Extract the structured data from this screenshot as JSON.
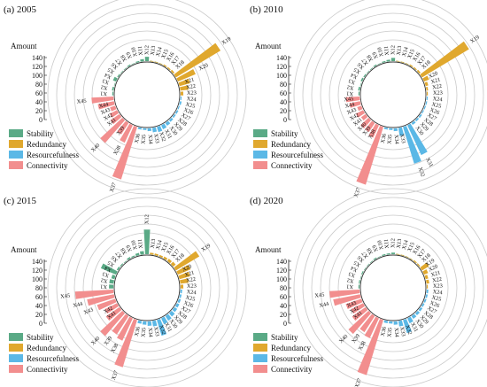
{
  "legend": {
    "title": "Amount",
    "ticks": [
      140,
      120,
      100,
      80,
      60,
      40,
      20,
      0
    ],
    "items": [
      {
        "name": "Stability",
        "color": "#5aaa86"
      },
      {
        "name": "Redundancy",
        "color": "#e0a82e"
      },
      {
        "name": "Resourcefulness",
        "color": "#5bb8e6"
      },
      {
        "name": "Connectivity",
        "color": "#f28e8e"
      }
    ]
  },
  "chart_data": [
    {
      "type": "bar",
      "subtype": "radial",
      "title": "(a) 2005",
      "ylim": [
        0,
        140
      ],
      "categories": [
        "X1",
        "X2",
        "X3",
        "X4",
        "X5",
        "X6",
        "X7",
        "X8",
        "X9",
        "X10",
        "X11",
        "X12",
        "X13",
        "X14",
        "X15",
        "X16",
        "X17",
        "X18",
        "X19",
        "X20",
        "X21",
        "X22",
        "X23",
        "X24",
        "X25",
        "X26",
        "X27",
        "X28",
        "X29",
        "X30",
        "X31",
        "X32",
        "X33",
        "X34",
        "X35",
        "X36",
        "X37",
        "X38",
        "X39",
        "X40",
        "X41",
        "X42",
        "X43",
        "X44",
        "X45"
      ],
      "series": [
        {
          "name": "Stability",
          "values": [
            2,
            3,
            1,
            6,
            2,
            1,
            1,
            2,
            1,
            2,
            4,
            8,
            1,
            1,
            1,
            1,
            1,
            1,
            0,
            0,
            0,
            0,
            0,
            0,
            0,
            0,
            0,
            0,
            0,
            0,
            0,
            0,
            0,
            0,
            0,
            0,
            0,
            0,
            0,
            0,
            0,
            0,
            0,
            0,
            0
          ]
        },
        {
          "name": "Redundancy",
          "values": [
            0,
            0,
            0,
            0,
            0,
            0,
            0,
            0,
            0,
            0,
            0,
            0,
            1,
            1,
            1,
            2,
            2,
            3,
            95,
            35,
            20,
            15,
            5,
            0,
            0,
            0,
            0,
            0,
            0,
            0,
            0,
            0,
            0,
            0,
            0,
            0,
            0,
            0,
            0,
            0,
            0,
            0,
            0,
            0,
            0
          ]
        },
        {
          "name": "Resourcefulness",
          "values": [
            0,
            0,
            0,
            0,
            0,
            0,
            0,
            0,
            0,
            0,
            0,
            0,
            0,
            0,
            0,
            0,
            0,
            0,
            0,
            0,
            0,
            0,
            0,
            2,
            3,
            2,
            3,
            3,
            4,
            6,
            8,
            10,
            8,
            5,
            3,
            3,
            0,
            0,
            0,
            0,
            0,
            0,
            0,
            0,
            0
          ]
        },
        {
          "name": "Connectivity",
          "values": [
            0,
            0,
            0,
            0,
            0,
            0,
            0,
            0,
            0,
            0,
            0,
            0,
            0,
            0,
            0,
            0,
            0,
            0,
            0,
            0,
            0,
            0,
            0,
            0,
            0,
            0,
            0,
            0,
            0,
            0,
            0,
            0,
            0,
            0,
            0,
            0,
            100,
            35,
            25,
            55,
            20,
            15,
            10,
            30,
            40
          ]
        }
      ],
      "labels_shown": [
        "X1",
        "X2",
        "X3",
        "X4",
        "X5",
        "X6",
        "X7",
        "X8",
        "X9",
        "X10",
        "X11",
        "X12",
        "X13",
        "X14",
        "X15",
        "X16",
        "X17",
        "X18",
        "X19",
        "X20",
        "X21",
        "X22",
        "X23",
        "X24",
        "X25",
        "X26",
        "X27",
        "X28",
        "X29",
        "X30",
        "X31",
        "X32",
        "X33",
        "X34",
        "X35",
        "X36",
        "X37",
        "X38",
        "X39",
        "X40",
        "X41",
        "X42",
        "X43",
        "X44",
        "X45"
      ]
    },
    {
      "type": "bar",
      "subtype": "radial",
      "title": "(b) 2010",
      "ylim": [
        0,
        140
      ],
      "categories": [
        "X1",
        "X2",
        "X3",
        "X4",
        "X5",
        "X6",
        "X7",
        "X8",
        "X9",
        "X10",
        "X11",
        "X12",
        "X13",
        "X14",
        "X15",
        "X16",
        "X17",
        "X18",
        "X19",
        "X20",
        "X21",
        "X22",
        "X23",
        "X24",
        "X25",
        "X26",
        "X27",
        "X28",
        "X29",
        "X30",
        "X31",
        "X32",
        "X33",
        "X34",
        "X35",
        "X36",
        "X37",
        "X38",
        "X39",
        "X40",
        "X41",
        "X42",
        "X43",
        "X44",
        "X45"
      ],
      "series": [
        {
          "name": "Stability",
          "values": [
            2,
            3,
            1,
            3,
            2,
            1,
            1,
            2,
            1,
            2,
            3,
            6,
            1,
            1,
            1,
            1,
            1,
            1,
            0,
            0,
            0,
            0,
            0,
            0,
            0,
            0,
            0,
            0,
            0,
            0,
            0,
            0,
            0,
            0,
            0,
            0,
            0,
            0,
            0,
            0,
            0,
            0,
            0,
            0,
            0
          ]
        },
        {
          "name": "Redundancy",
          "values": [
            0,
            0,
            0,
            0,
            0,
            0,
            0,
            0,
            0,
            0,
            0,
            0,
            1,
            1,
            1,
            2,
            2,
            3,
            100,
            10,
            5,
            3,
            2,
            0,
            0,
            0,
            0,
            0,
            0,
            0,
            0,
            0,
            0,
            0,
            0,
            0,
            0,
            0,
            0,
            0,
            0,
            0,
            0,
            0,
            0
          ]
        },
        {
          "name": "Resourcefulness",
          "values": [
            0,
            0,
            0,
            0,
            0,
            0,
            0,
            0,
            0,
            0,
            0,
            0,
            0,
            0,
            0,
            0,
            0,
            0,
            0,
            0,
            0,
            0,
            0,
            2,
            2,
            2,
            2,
            3,
            3,
            4,
            60,
            70,
            15,
            5,
            3,
            3,
            0,
            0,
            0,
            0,
            0,
            0,
            0,
            0,
            0
          ]
        },
        {
          "name": "Connectivity",
          "values": [
            0,
            0,
            0,
            0,
            0,
            0,
            0,
            0,
            0,
            0,
            0,
            0,
            0,
            0,
            0,
            0,
            0,
            0,
            0,
            0,
            0,
            0,
            0,
            0,
            0,
            0,
            0,
            0,
            0,
            0,
            0,
            0,
            0,
            0,
            0,
            0,
            110,
            25,
            20,
            20,
            10,
            15,
            8,
            20,
            25
          ]
        }
      ],
      "labels_shown": [
        "X1",
        "X2",
        "X3",
        "X4",
        "X5",
        "X6",
        "X7",
        "X8",
        "X9",
        "X10",
        "X11",
        "X12",
        "X13",
        "X14",
        "X15",
        "X16",
        "X17",
        "X18",
        "X19",
        "X20",
        "X21",
        "X22",
        "X23",
        "X24",
        "X25",
        "X26",
        "X27",
        "X28",
        "X29",
        "X30",
        "X31",
        "X32",
        "X33",
        "X34",
        "X35",
        "X36",
        "X37",
        "X38",
        "X39",
        "X40",
        "X41",
        "X42",
        "X43",
        "X44",
        "X45"
      ]
    },
    {
      "type": "bar",
      "subtype": "radial",
      "title": "(c) 2015",
      "ylim": [
        0,
        140
      ],
      "categories": [
        "X1",
        "X2",
        "X3",
        "X4",
        "X5",
        "X6",
        "X7",
        "X8",
        "X9",
        "X10",
        "X11",
        "X12",
        "X13",
        "X14",
        "X15",
        "X16",
        "X17",
        "X18",
        "X19",
        "X20",
        "X21",
        "X22",
        "X23",
        "X24",
        "X25",
        "X26",
        "X27",
        "X28",
        "X29",
        "X30",
        "X31",
        "X32",
        "X33",
        "X34",
        "X35",
        "X36",
        "X37",
        "X38",
        "X39",
        "X40",
        "X41",
        "X42",
        "X43",
        "X44",
        "X45"
      ],
      "series": [
        {
          "name": "Stability",
          "values": [
            8,
            8,
            6,
            30,
            3,
            2,
            1,
            3,
            2,
            4,
            6,
            45,
            2,
            2,
            1,
            1,
            1,
            1,
            0,
            0,
            0,
            0,
            0,
            0,
            0,
            0,
            0,
            0,
            0,
            0,
            0,
            0,
            0,
            0,
            0,
            0,
            0,
            0,
            0,
            0,
            0,
            0,
            0,
            0,
            0
          ]
        },
        {
          "name": "Redundancy",
          "values": [
            0,
            0,
            0,
            0,
            0,
            0,
            0,
            0,
            0,
            0,
            0,
            0,
            3,
            3,
            3,
            4,
            5,
            6,
            50,
            25,
            20,
            15,
            5,
            0,
            0,
            0,
            0,
            0,
            0,
            0,
            0,
            0,
            0,
            0,
            0,
            0,
            0,
            0,
            0,
            0,
            0,
            0,
            0,
            0,
            0
          ]
        },
        {
          "name": "Resourcefulness",
          "values": [
            0,
            0,
            0,
            0,
            0,
            0,
            0,
            0,
            0,
            0,
            0,
            0,
            0,
            0,
            0,
            0,
            0,
            0,
            0,
            0,
            0,
            0,
            0,
            3,
            3,
            4,
            5,
            6,
            8,
            10,
            12,
            30,
            10,
            8,
            6,
            5,
            0,
            0,
            0,
            0,
            0,
            0,
            0,
            0,
            0
          ]
        },
        {
          "name": "Connectivity",
          "values": [
            0,
            0,
            0,
            0,
            0,
            0,
            0,
            0,
            0,
            0,
            0,
            0,
            0,
            0,
            0,
            0,
            0,
            0,
            0,
            0,
            0,
            0,
            0,
            0,
            0,
            0,
            0,
            0,
            0,
            0,
            0,
            0,
            0,
            0,
            0,
            0,
            90,
            45,
            40,
            55,
            30,
            25,
            35,
            50,
            70
          ]
        }
      ],
      "labels_shown": [
        "X1",
        "X2",
        "X3",
        "X4",
        "X5",
        "X6",
        "X7",
        "X8",
        "X9",
        "X10",
        "X11",
        "X12",
        "X13",
        "X14",
        "X15",
        "X16",
        "X17",
        "X18",
        "X19",
        "X20",
        "X21",
        "X22",
        "X23",
        "X24",
        "X25",
        "X26",
        "X27",
        "X28",
        "X29",
        "X30",
        "X31",
        "X32",
        "X33",
        "X34",
        "X35",
        "X36",
        "X37",
        "X38",
        "X39",
        "X40",
        "X41",
        "X42",
        "X43",
        "X44",
        "X45"
      ]
    },
    {
      "type": "bar",
      "subtype": "radial",
      "title": "(d) 2020",
      "ylim": [
        0,
        140
      ],
      "categories": [
        "X1",
        "X2",
        "X3",
        "X4",
        "X5",
        "X6",
        "X7",
        "X8",
        "X9",
        "X10",
        "X11",
        "X12",
        "X13",
        "X14",
        "X15",
        "X16",
        "X17",
        "X18",
        "X19",
        "X20",
        "X21",
        "X22",
        "X23",
        "X24",
        "X25",
        "X26",
        "X27",
        "X28",
        "X29",
        "X30",
        "X31",
        "X32",
        "X33",
        "X34",
        "X35",
        "X36",
        "X37",
        "X38",
        "X39",
        "X40",
        "X41",
        "X42",
        "X43",
        "X44",
        "X45"
      ],
      "series": [
        {
          "name": "Stability",
          "values": [
            2,
            2,
            1,
            2,
            1,
            1,
            1,
            2,
            1,
            2,
            2,
            3,
            1,
            1,
            1,
            1,
            1,
            1,
            0,
            0,
            0,
            0,
            0,
            0,
            0,
            0,
            0,
            0,
            0,
            0,
            0,
            0,
            0,
            0,
            0,
            0,
            0,
            0,
            0,
            0,
            0,
            0,
            0,
            0,
            0
          ]
        },
        {
          "name": "Redundancy",
          "values": [
            0,
            0,
            0,
            0,
            0,
            0,
            0,
            0,
            0,
            0,
            0,
            0,
            1,
            1,
            1,
            1,
            2,
            2,
            15,
            8,
            5,
            5,
            2,
            0,
            0,
            0,
            0,
            0,
            0,
            0,
            0,
            0,
            0,
            0,
            0,
            0,
            0,
            0,
            0,
            0,
            0,
            0,
            0,
            0,
            0
          ]
        },
        {
          "name": "Resourcefulness",
          "values": [
            0,
            0,
            0,
            0,
            0,
            0,
            0,
            0,
            0,
            0,
            0,
            0,
            0,
            0,
            0,
            0,
            0,
            0,
            0,
            0,
            0,
            0,
            0,
            3,
            3,
            3,
            3,
            4,
            5,
            6,
            10,
            25,
            10,
            6,
            4,
            4,
            0,
            0,
            0,
            0,
            0,
            0,
            0,
            0,
            0
          ]
        },
        {
          "name": "Connectivity",
          "values": [
            0,
            0,
            0,
            0,
            0,
            0,
            0,
            0,
            0,
            0,
            0,
            0,
            0,
            0,
            0,
            0,
            0,
            0,
            0,
            0,
            0,
            0,
            0,
            0,
            0,
            0,
            0,
            0,
            0,
            0,
            0,
            0,
            0,
            0,
            0,
            0,
            105,
            40,
            35,
            50,
            30,
            25,
            30,
            50,
            55
          ]
        }
      ],
      "labels_shown": [
        "X1",
        "X2",
        "X3",
        "X4",
        "X5",
        "X6",
        "X7",
        "X8",
        "X9",
        "X10",
        "X11",
        "X12",
        "X13",
        "X14",
        "X15",
        "X16",
        "X17",
        "X18",
        "X19",
        "X20",
        "X21",
        "X22",
        "X23",
        "X24",
        "X25",
        "X26",
        "X27",
        "X28",
        "X29",
        "X30",
        "X31",
        "X32",
        "X33",
        "X34",
        "X35",
        "X36",
        "X37",
        "X38",
        "X39",
        "X40",
        "X41",
        "X42",
        "X43",
        "X44",
        "X45"
      ]
    }
  ]
}
